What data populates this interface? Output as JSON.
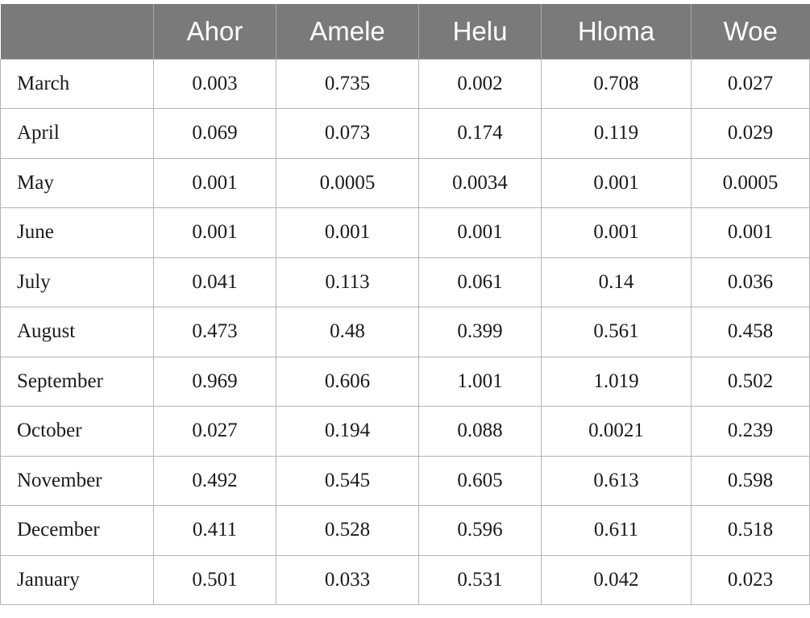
{
  "table": {
    "columns": [
      "",
      "Ahor",
      "Amele",
      "Helu",
      "Hloma",
      "Woe"
    ],
    "rows": [
      [
        "March",
        "0.003",
        "0.735",
        "0.002",
        "0.708",
        "0.027"
      ],
      [
        "April",
        "0.069",
        "0.073",
        "0.174",
        "0.119",
        "0.029"
      ],
      [
        "May",
        "0.001",
        "0.0005",
        "0.0034",
        "0.001",
        "0.0005"
      ],
      [
        "June",
        "0.001",
        "0.001",
        "0.001",
        "0.001",
        "0.001"
      ],
      [
        "July",
        "0.041",
        "0.113",
        "0.061",
        "0.14",
        "0.036"
      ],
      [
        "August",
        "0.473",
        "0.48",
        "0.399",
        "0.561",
        "0.458"
      ],
      [
        "September",
        "0.969",
        "0.606",
        "1.001",
        "1.019",
        "0.502"
      ],
      [
        "October",
        "0.027",
        "0.194",
        "0.088",
        "0.0021",
        "0.239"
      ],
      [
        "November",
        "0.492",
        "0.545",
        "0.605",
        "0.613",
        "0.598"
      ],
      [
        "December",
        "0.411",
        "0.528",
        "0.596",
        "0.611",
        "0.518"
      ],
      [
        "January",
        "0.501",
        "0.033",
        "0.531",
        "0.042",
        "0.023"
      ]
    ]
  },
  "colors": {
    "header_bg": "#7a7a7a",
    "header_text": "#ffffff",
    "grid": "#b5b5b5"
  }
}
